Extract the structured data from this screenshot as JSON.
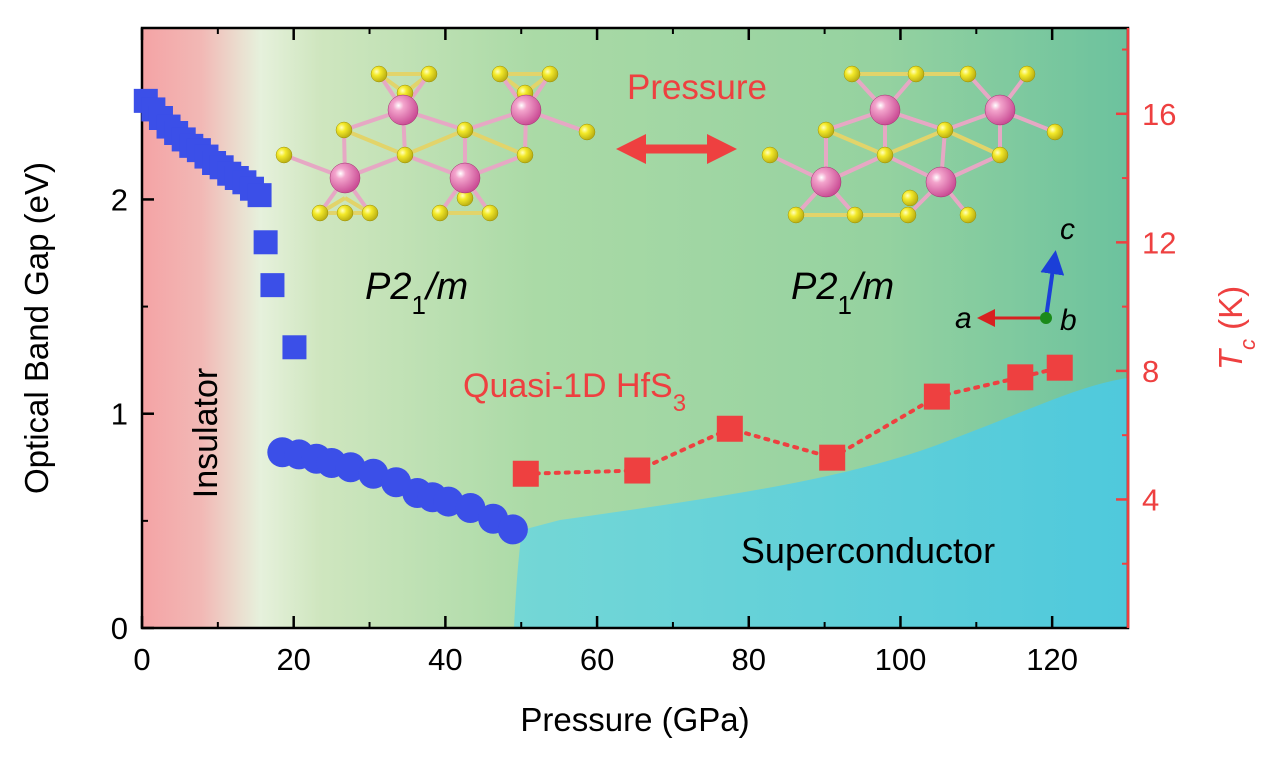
{
  "chart_data": {
    "type": "scatter",
    "xlabel": "Pressure (GPa)",
    "ylabel_left": "Optical Band Gap (eV)",
    "ylabel_right": {
      "base": "T",
      "sub": "c",
      "unit": " (K)"
    },
    "xlim": [
      0,
      130
    ],
    "ylim_left": [
      0,
      2.8
    ],
    "ylim_right": [
      0,
      18.67
    ],
    "x_ticks": [
      "0",
      "20",
      "40",
      "60",
      "80",
      "100",
      "120"
    ],
    "y_left_ticks": [
      "0",
      "1",
      "2"
    ],
    "y_right_ticks": [
      "4",
      "8",
      "12",
      "16"
    ],
    "series": [
      {
        "axis": "left",
        "marker": "square",
        "color": "#3b4fe8",
        "x": [
          0.5,
          1.5,
          2.5,
          3.5,
          4.5,
          5.5,
          6.5,
          7.5,
          8.5,
          9.5,
          10.5,
          11.5,
          12.5,
          13.5,
          14.5,
          15.5,
          16.3,
          17.2,
          20.1
        ],
        "y": [
          2.46,
          2.42,
          2.38,
          2.34,
          2.31,
          2.28,
          2.25,
          2.23,
          2.2,
          2.17,
          2.15,
          2.12,
          2.1,
          2.08,
          2.05,
          2.02,
          1.8,
          1.6,
          1.31
        ]
      },
      {
        "axis": "left",
        "marker": "circle",
        "color": "#3b4fe8",
        "x": [
          18.5,
          20.7,
          23.0,
          25.0,
          27.5,
          30.5,
          33.5,
          36.3,
          38.3,
          40.4,
          43.3,
          46.3,
          48.9
        ],
        "y": [
          0.82,
          0.81,
          0.79,
          0.77,
          0.75,
          0.72,
          0.68,
          0.63,
          0.61,
          0.59,
          0.56,
          0.51,
          0.46
        ]
      },
      {
        "axis": "right",
        "marker": "square",
        "color": "#ee4040",
        "line": "dotted",
        "x": [
          50.6,
          65.3,
          77.5,
          91.0,
          104.8,
          115.8,
          121.0
        ],
        "y": [
          4.8,
          4.9,
          6.2,
          5.3,
          7.2,
          7.8,
          8.1
        ]
      }
    ],
    "annotations": {
      "pressure": "Pressure",
      "space_group_left": {
        "main": "P2",
        "sub": "1",
        "tail": "/m"
      },
      "space_group_right": {
        "main": "P2",
        "sub": "1",
        "tail": "/m"
      },
      "phase_label": {
        "main": "Quasi-1D HfS",
        "sub": "3"
      },
      "insulator": "Insulator",
      "superconductor": "Superconductor",
      "axis_a": "a",
      "axis_b": "b",
      "axis_c": "c"
    },
    "colors": {
      "accent_red": "#ee4040",
      "marker_blue": "#3b4fe8",
      "insulator_bg": "#f2a7a7",
      "metal_bg": "#a8d8a4",
      "superconductor_bg": "#5ccfd8",
      "atom_hf": "#e06aa8",
      "atom_s": "#f0e020"
    }
  }
}
